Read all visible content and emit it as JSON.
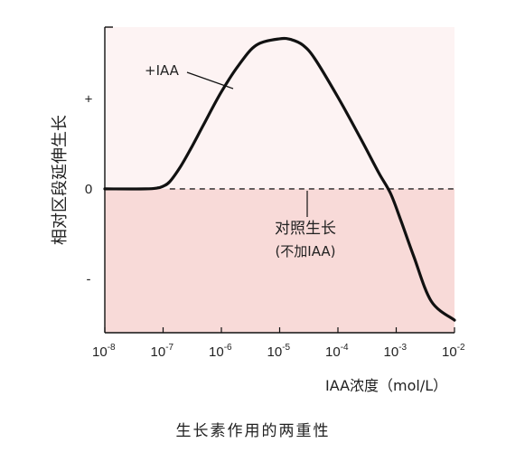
{
  "chart_data": {
    "type": "line",
    "xlabel": "IAA浓度（mol/L）",
    "ylabel": "相对区段延伸生长",
    "x_ticks": [
      {
        "base": "10",
        "exp": "-8"
      },
      {
        "base": "10",
        "exp": "-7"
      },
      {
        "base": "10",
        "exp": "-6"
      },
      {
        "base": "10",
        "exp": "-5"
      },
      {
        "base": "10",
        "exp": "-4"
      },
      {
        "base": "10",
        "exp": "-3"
      },
      {
        "base": "10",
        "exp": "-2"
      }
    ],
    "x_scale": "log",
    "xlim": [
      1e-08,
      0.01
    ],
    "y_ticks": [
      "+",
      "0",
      "-"
    ],
    "y_tick_values": [
      1,
      0,
      -1
    ],
    "ylim": [
      -1.6,
      1.8
    ],
    "series": [
      {
        "name": "+IAA",
        "x": [
          1e-08,
          5e-08,
          8e-08,
          1e-07,
          1.3e-07,
          2e-07,
          3e-07,
          5e-07,
          1e-06,
          2e-06,
          4e-06,
          1e-05,
          1.6e-05,
          2.5e-05,
          4e-05,
          0.0001,
          0.00025,
          0.0005,
          0.0008,
          0.0012,
          0.002,
          0.004,
          0.01
        ],
        "y": [
          0,
          0,
          0.01,
          0.03,
          0.08,
          0.25,
          0.45,
          0.72,
          1.08,
          1.38,
          1.6,
          1.67,
          1.66,
          1.6,
          1.45,
          1.02,
          0.55,
          0.18,
          -0.05,
          -0.35,
          -0.75,
          -1.25,
          -1.46
        ]
      }
    ],
    "reference_line": {
      "y": 0,
      "label": "对照生长",
      "sublabel": "(不加IAA)"
    },
    "shaded_region": "below-zero",
    "shade_color": "#f8dad8",
    "upper_bg_color": "#fdf3f3",
    "caption": "生长素作用的两重性"
  }
}
